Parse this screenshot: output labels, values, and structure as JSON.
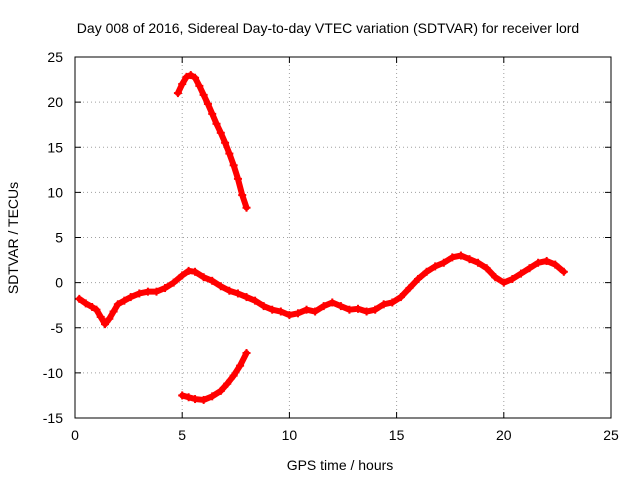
{
  "chart_data": {
    "type": "scatter",
    "title": "Day 008 of 2016, Sidereal Day-to-day VTEC variation (SDTVAR) for receiver lord",
    "xlabel": "GPS time / hours",
    "ylabel": "SDTVAR / TECUs",
    "xlim": [
      0,
      25
    ],
    "ylim": [
      -15,
      25
    ],
    "xticks": [
      0,
      5,
      10,
      15,
      20,
      25
    ],
    "yticks": [
      -15,
      -10,
      -5,
      0,
      5,
      10,
      15,
      20,
      25
    ],
    "grid": true,
    "legend": "none",
    "marker": "plus",
    "color": "#ff0000",
    "series": [
      {
        "name": "main band",
        "points": [
          [
            0.2,
            -1.8
          ],
          [
            0.5,
            -2.3
          ],
          [
            0.8,
            -2.7
          ],
          [
            1.0,
            -3.0
          ],
          [
            1.2,
            -3.8
          ],
          [
            1.4,
            -4.6
          ],
          [
            1.6,
            -4.0
          ],
          [
            1.8,
            -3.2
          ],
          [
            2.0,
            -2.4
          ],
          [
            2.3,
            -2.0
          ],
          [
            2.6,
            -1.6
          ],
          [
            3.0,
            -1.2
          ],
          [
            3.4,
            -1.0
          ],
          [
            3.8,
            -1.0
          ],
          [
            4.2,
            -0.6
          ],
          [
            4.6,
            0.0
          ],
          [
            5.0,
            0.8
          ],
          [
            5.3,
            1.3
          ],
          [
            5.6,
            1.2
          ],
          [
            6.0,
            0.6
          ],
          [
            6.4,
            0.2
          ],
          [
            6.8,
            -0.4
          ],
          [
            7.2,
            -0.9
          ],
          [
            7.6,
            -1.2
          ],
          [
            8.0,
            -1.6
          ],
          [
            8.4,
            -2.0
          ],
          [
            8.8,
            -2.6
          ],
          [
            9.2,
            -3.0
          ],
          [
            9.6,
            -3.2
          ],
          [
            10.0,
            -3.6
          ],
          [
            10.4,
            -3.4
          ],
          [
            10.8,
            -3.0
          ],
          [
            11.2,
            -3.2
          ],
          [
            11.6,
            -2.6
          ],
          [
            12.0,
            -2.2
          ],
          [
            12.4,
            -2.6
          ],
          [
            12.8,
            -3.0
          ],
          [
            13.2,
            -2.9
          ],
          [
            13.6,
            -3.2
          ],
          [
            14.0,
            -3.0
          ],
          [
            14.4,
            -2.4
          ],
          [
            14.8,
            -2.2
          ],
          [
            15.2,
            -1.6
          ],
          [
            15.6,
            -0.6
          ],
          [
            16.0,
            0.4
          ],
          [
            16.4,
            1.2
          ],
          [
            16.8,
            1.8
          ],
          [
            17.2,
            2.2
          ],
          [
            17.6,
            2.8
          ],
          [
            18.0,
            3.0
          ],
          [
            18.4,
            2.6
          ],
          [
            18.8,
            2.2
          ],
          [
            19.2,
            1.6
          ],
          [
            19.6,
            0.6
          ],
          [
            20.0,
            0.0
          ],
          [
            20.4,
            0.4
          ],
          [
            20.8,
            1.0
          ],
          [
            21.2,
            1.6
          ],
          [
            21.6,
            2.2
          ],
          [
            22.0,
            2.4
          ],
          [
            22.4,
            2.0
          ],
          [
            22.8,
            1.2
          ]
        ]
      },
      {
        "name": "upper arc",
        "points": [
          [
            4.8,
            21.0
          ],
          [
            5.0,
            22.0
          ],
          [
            5.2,
            22.8
          ],
          [
            5.4,
            23.0
          ],
          [
            5.6,
            22.7
          ],
          [
            5.8,
            21.8
          ],
          [
            6.0,
            20.8
          ],
          [
            6.2,
            19.8
          ],
          [
            6.4,
            18.7
          ],
          [
            6.6,
            17.6
          ],
          [
            6.8,
            16.6
          ],
          [
            7.0,
            15.5
          ],
          [
            7.2,
            14.3
          ],
          [
            7.4,
            13.0
          ],
          [
            7.6,
            11.5
          ],
          [
            7.8,
            9.7
          ],
          [
            8.0,
            8.3
          ]
        ]
      },
      {
        "name": "lower arc",
        "points": [
          [
            5.0,
            -12.5
          ],
          [
            5.3,
            -12.7
          ],
          [
            5.6,
            -12.9
          ],
          [
            6.0,
            -13.0
          ],
          [
            6.4,
            -12.6
          ],
          [
            6.8,
            -12.0
          ],
          [
            7.1,
            -11.2
          ],
          [
            7.4,
            -10.3
          ],
          [
            7.7,
            -9.2
          ],
          [
            8.0,
            -7.8
          ]
        ]
      }
    ]
  }
}
